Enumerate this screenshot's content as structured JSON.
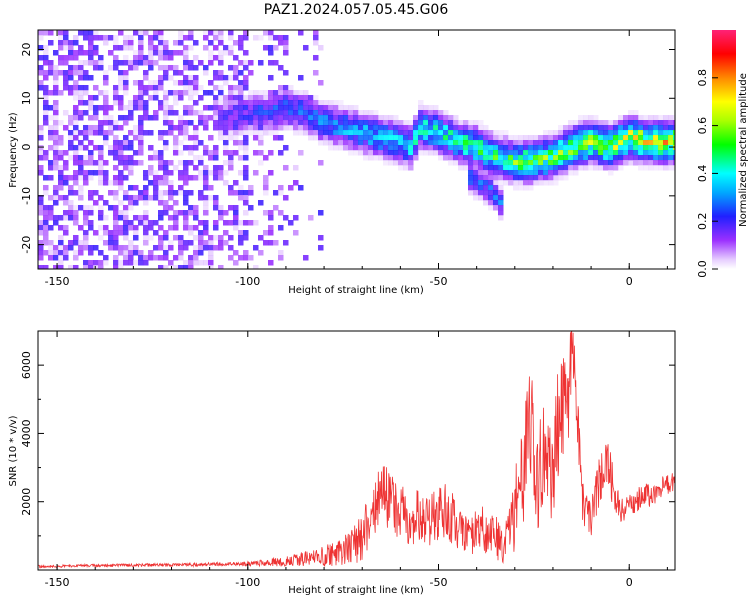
{
  "figure_title": "PAZ1.2024.057.05.45.G06",
  "chart_data": [
    {
      "type": "heatmap",
      "title": "",
      "xlabel": "Height of straight line (km)",
      "ylabel": "Frequency (Hz)",
      "xlim": [
        -155,
        12
      ],
      "ylim": [
        -25,
        24
      ],
      "xticks": [
        -150,
        -100,
        -50,
        0
      ],
      "yticks": [
        -20,
        -10,
        0,
        10,
        20
      ],
      "ridge": {
        "x": [
          -150,
          -105,
          -100,
          -95,
          -90,
          -85,
          -80,
          -75,
          -70,
          -65,
          -60,
          -57,
          -55,
          -50,
          -45,
          -40,
          -35,
          -30,
          -25,
          -20,
          -15,
          -10,
          -5,
          0,
          5,
          12
        ],
        "y": [
          0,
          6,
          7,
          7,
          8,
          7,
          5,
          4,
          3,
          2,
          1,
          0,
          4,
          3,
          1,
          0,
          -2,
          -3,
          -3,
          -2,
          0,
          1,
          0,
          2,
          1,
          1
        ]
      },
      "side_branch": {
        "x": [
          -42,
          -36,
          -33
        ],
        "y": [
          -6,
          -9,
          -12
        ]
      },
      "colorbar": {
        "label": "Normalized spectral amplitude",
        "ticks": [
          0.0,
          0.2,
          0.4,
          0.6,
          0.8
        ],
        "range": [
          0,
          1
        ]
      }
    },
    {
      "type": "line",
      "title": "",
      "xlabel": "Height of straight line (km)",
      "ylabel": "SNR (10 * v/v)",
      "xlim": [
        -155,
        12
      ],
      "ylim": [
        0,
        7000
      ],
      "xticks": [
        -150,
        -100,
        -50,
        0
      ],
      "yticks": [
        2000,
        4000,
        6000
      ],
      "series": [
        {
          "color": "#ee3333",
          "x": [
            -155,
            -140,
            -120,
            -100,
            -90,
            -80,
            -75,
            -70,
            -68,
            -65,
            -62,
            -58,
            -55,
            -52,
            -48,
            -45,
            -42,
            -40,
            -38,
            -35,
            -33,
            -31,
            -30,
            -28,
            -26,
            -24,
            -22,
            -20,
            -18,
            -16,
            -15,
            -14,
            -13,
            -12,
            -10,
            -8,
            -6,
            -4,
            -2,
            0,
            2,
            4,
            6,
            8,
            10,
            12
          ],
          "y": [
            100,
            130,
            150,
            180,
            250,
            400,
            550,
            900,
            1600,
            2300,
            1900,
            1500,
            1600,
            1400,
            1800,
            1200,
            900,
            1100,
            1300,
            1000,
            600,
            1200,
            1800,
            2600,
            4400,
            2600,
            3500,
            2800,
            5200,
            4000,
            7000,
            5800,
            3000,
            1800,
            1600,
            2500,
            3300,
            2300,
            1700,
            1900,
            2000,
            2300,
            2100,
            2400,
            2500,
            2600
          ],
          "spread": [
            40,
            40,
            50,
            60,
            150,
            300,
            450,
            700,
            800,
            900,
            900,
            800,
            800,
            800,
            900,
            700,
            600,
            700,
            800,
            700,
            500,
            900,
            1200,
            1500,
            1700,
            1500,
            1600,
            1600,
            1700,
            1600,
            1400,
            1300,
            1000,
            700,
            600,
            700,
            800,
            600,
            400,
            350,
            350,
            350,
            300,
            300,
            300,
            300
          ]
        }
      ]
    }
  ]
}
